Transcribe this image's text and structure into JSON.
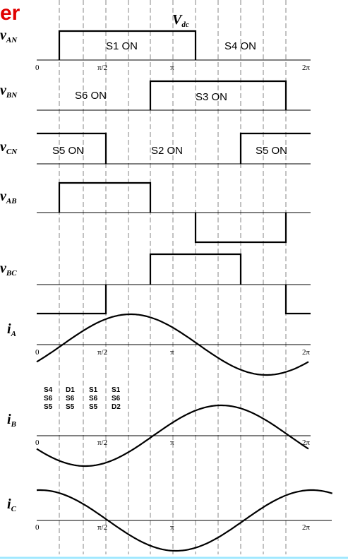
{
  "title_fragment": "er",
  "vdc_label": {
    "main": "V",
    "sub": "dc"
  },
  "pi_half": "π/2",
  "pi": "π",
  "two_pi": "2π",
  "zero": "0",
  "rows": [
    {
      "id": "vAN",
      "main": "v",
      "sub": "AN",
      "on_labels": [
        "S1 ON",
        "S4 ON"
      ]
    },
    {
      "id": "vBN",
      "main": "v",
      "sub": "BN",
      "on_labels": [
        "S6 ON",
        "S3 ON"
      ]
    },
    {
      "id": "vCN",
      "main": "v",
      "sub": "CN",
      "on_labels": [
        "S5 ON",
        "S2 ON",
        "S5 ON"
      ]
    },
    {
      "id": "vAB",
      "main": "v",
      "sub": "AB",
      "on_labels": []
    },
    {
      "id": "vBC",
      "main": "v",
      "sub": "BC",
      "on_labels": []
    },
    {
      "id": "iA",
      "main": "i",
      "sub": "A",
      "on_labels": []
    },
    {
      "id": "iB",
      "main": "i",
      "sub": "B",
      "on_labels": []
    },
    {
      "id": "iC",
      "main": "i",
      "sub": "C",
      "on_labels": []
    }
  ],
  "switch_table": [
    [
      "S4",
      "S6",
      "S5"
    ],
    [
      "D1",
      "S6",
      "S5"
    ],
    [
      "S1",
      "S6",
      "S5"
    ],
    [
      "S1",
      "S6",
      "D2"
    ]
  ]
}
